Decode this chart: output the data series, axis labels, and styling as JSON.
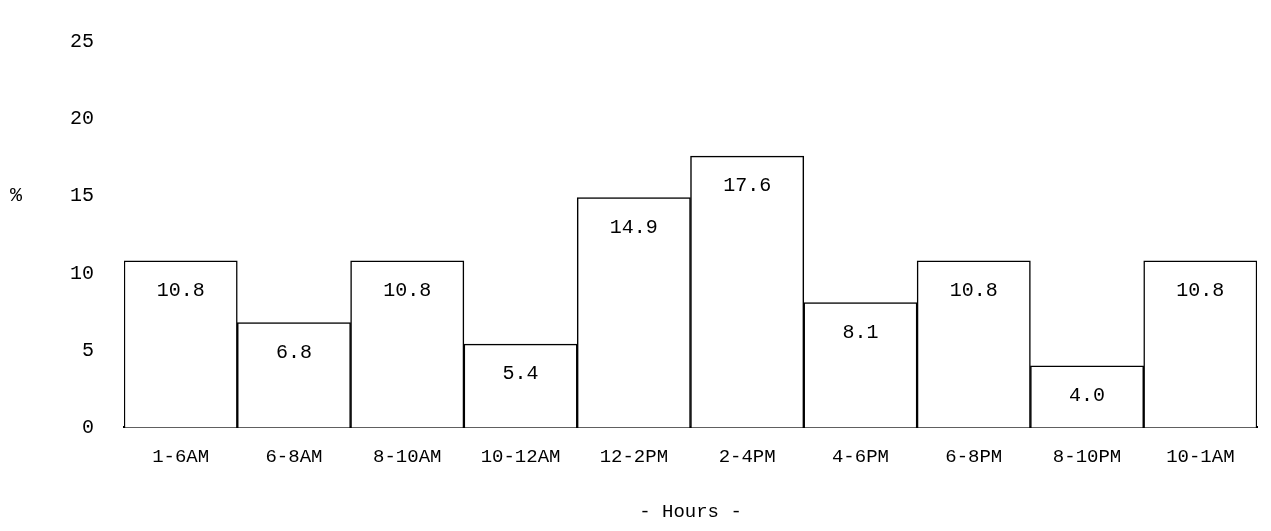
{
  "chart_data": {
    "type": "bar",
    "xlabel": "- Hours -",
    "ylabel": "%",
    "categories": [
      "1-6AM",
      "6-8AM",
      "8-10AM",
      "10-12AM",
      "12-2PM",
      "2-4PM",
      "4-6PM",
      "6-8PM",
      "8-10PM",
      "10-1AM"
    ],
    "values": [
      10.8,
      6.8,
      10.8,
      5.4,
      14.9,
      17.6,
      8.1,
      10.8,
      4.0,
      10.8
    ],
    "value_labels": [
      "10.8",
      "6.8",
      "10.8",
      "5.4",
      "14.9",
      "17.6",
      "8.1",
      "10.8",
      "4.0",
      "10.8"
    ],
    "color": "#ffffff",
    "ylim": [
      0,
      25
    ],
    "yticks": [
      0,
      5,
      10,
      15,
      20,
      25
    ],
    "grid": false,
    "legend": false
  }
}
